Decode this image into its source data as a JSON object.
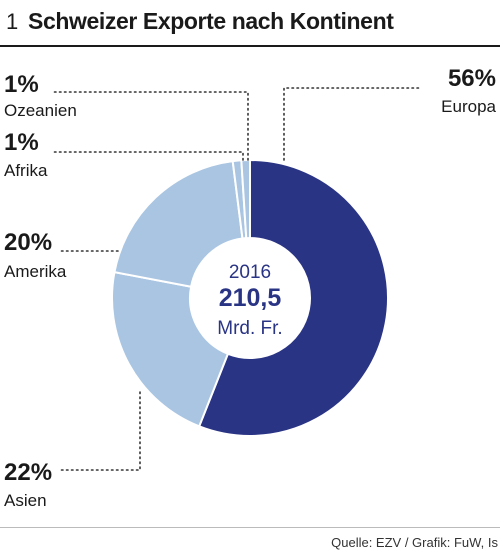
{
  "header": {
    "number": "1",
    "title": "Schweizer Exporte nach Kontinent"
  },
  "chart_data": {
    "type": "pie",
    "categories": [
      "Europa",
      "Asien",
      "Amerika",
      "Afrika",
      "Ozeanien"
    ],
    "values": [
      56,
      22,
      20,
      1,
      1
    ],
    "value_labels": [
      "56%",
      "22%",
      "20%",
      "1%",
      "1%"
    ],
    "colors": [
      "#2a3484",
      "#a9c5e2",
      "#a9c5e2",
      "#a9c5e2",
      "#a9c5e2"
    ],
    "center": {
      "year": "2016",
      "total": "210,5",
      "unit": "Mrd. Fr."
    },
    "title": "Schweizer Exporte nach Kontinent"
  },
  "footer": {
    "source": "Quelle: EZV / Grafik: FuW, Is"
  }
}
